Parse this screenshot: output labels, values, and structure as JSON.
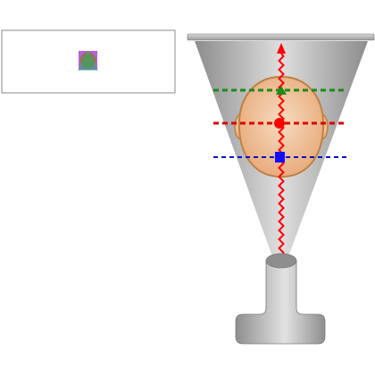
{
  "colors": {
    "background": "#ffffff",
    "inset_border": "#8a8a8a",
    "beam_light": "#dedede",
    "beam_dark": "#8c8c8c",
    "source_light": "#e2e2e2",
    "source_dark": "#8e8e8e",
    "detector_light": "#dadada",
    "detector_dark": "#9a9a9a",
    "head_fill_light": "#f6dcc0",
    "head_fill_dark": "#e7a878",
    "head_stroke": "#c08040",
    "ray": "#ff0000",
    "line_top": "#1a8a1a",
    "line_middle": "#e00000",
    "line_bottom": "#1010c0",
    "marker_triangle": "#1a8a1a",
    "marker_circle": "#ff0000",
    "marker_square": "#1010ff",
    "inset_square": "#b040e0",
    "inset_circle": "#8a7a30",
    "inset_triangle": "#20b070"
  },
  "layers": [
    {
      "name": "top",
      "marker": "triangle"
    },
    {
      "name": "middle",
      "marker": "circle"
    },
    {
      "name": "bottom",
      "marker": "square"
    }
  ],
  "inset": {
    "overlaid_markers": [
      "square",
      "circle",
      "triangle"
    ]
  },
  "icons": {
    "source": "x-ray-tube-icon",
    "detector": "detector-plate-icon",
    "head": "head-outline-icon",
    "ray": "x-ray-path-icon"
  }
}
